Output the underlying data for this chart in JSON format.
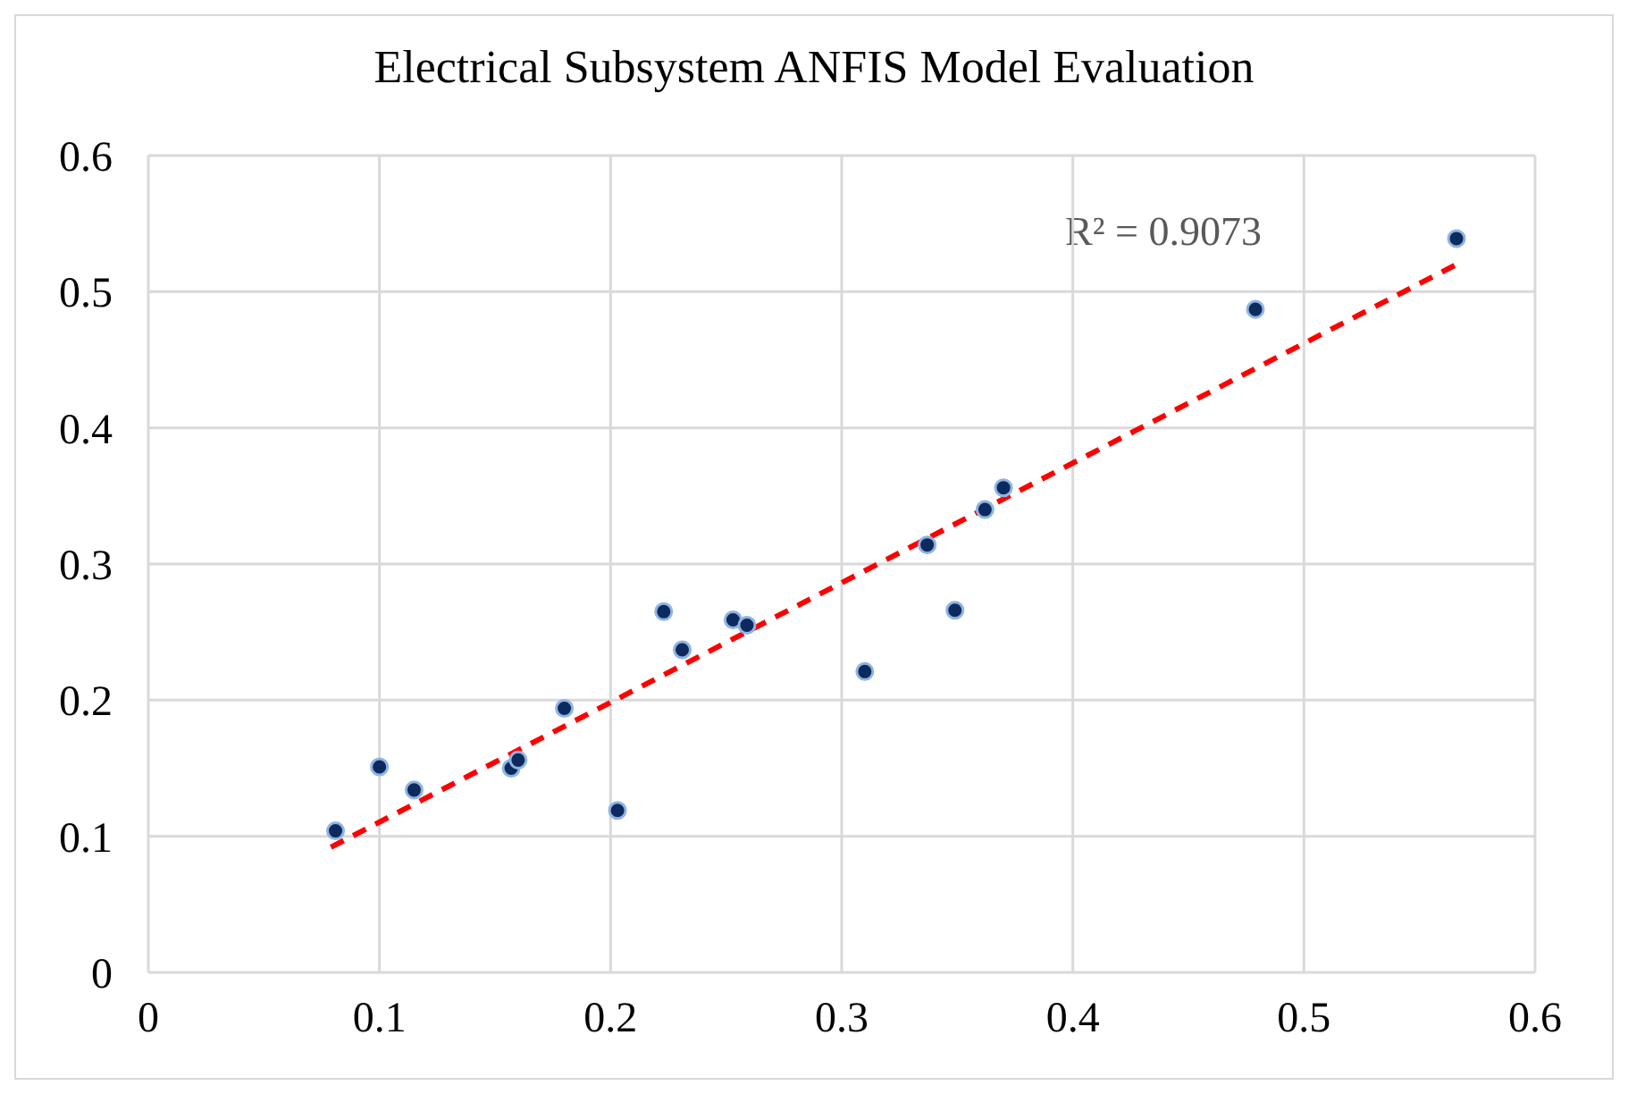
{
  "chart_data": {
    "type": "scatter",
    "title": "Electrical Subsystem ANFIS Model Evaluation",
    "xlim": [
      0,
      0.6
    ],
    "xticks": [
      0,
      0.1,
      0.2,
      0.3,
      0.4,
      0.5,
      0.6
    ],
    "ylim": [
      0,
      0.6
    ],
    "yticks": [
      0,
      0.1,
      0.2,
      0.3,
      0.4,
      0.5,
      0.6
    ],
    "grid": true,
    "marker": "circle",
    "annotations": [
      "R² = 0.9073"
    ],
    "series": [
      {
        "type": "scatter",
        "color": "#0d2a5e",
        "x": [
          0.081,
          0.1,
          0.115,
          0.157,
          0.16,
          0.18,
          0.203,
          0.223,
          0.231,
          0.253,
          0.259,
          0.31,
          0.337,
          0.349,
          0.362,
          0.37,
          0.479,
          0.566
        ],
        "values": [
          0.104,
          0.151,
          0.134,
          0.15,
          0.156,
          0.194,
          0.119,
          0.265,
          0.237,
          0.259,
          0.255,
          0.221,
          0.314,
          0.266,
          0.34,
          0.356,
          0.487,
          0.539
        ]
      },
      {
        "type": "line",
        "color": "#ff0000",
        "line_style": "dashed",
        "marker": "none",
        "x": [
          0.079,
          0.566
        ],
        "values": [
          0.092,
          0.52
        ]
      }
    ]
  }
}
